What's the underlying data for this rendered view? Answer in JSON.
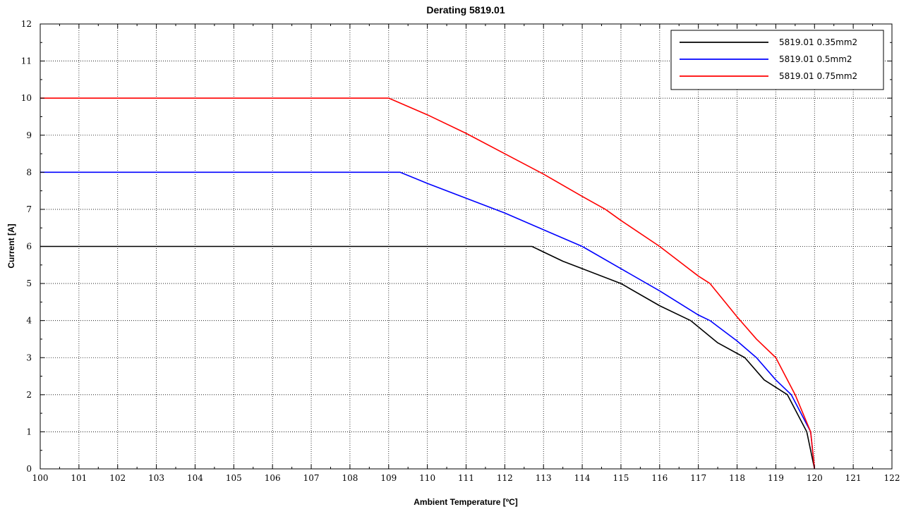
{
  "chart_data": {
    "type": "line",
    "title": "Derating 5819.01",
    "xlabel": "Ambient Temperature [ºC]",
    "ylabel": "Current [A]",
    "xlim": [
      100,
      122
    ],
    "ylim": [
      0,
      12
    ],
    "x_ticks": [
      100,
      101,
      102,
      103,
      104,
      105,
      106,
      107,
      108,
      109,
      110,
      111,
      112,
      113,
      114,
      115,
      116,
      117,
      118,
      119,
      120,
      121,
      122
    ],
    "y_ticks": [
      0,
      1,
      2,
      3,
      4,
      5,
      6,
      7,
      8,
      9,
      10,
      11,
      12
    ],
    "grid": true,
    "legend": "top-right",
    "series": [
      {
        "name": "5819.01 0.35mm2",
        "color": "#000000",
        "x": [
          100,
          112.7,
          113.5,
          114,
          115,
          116,
          116.8,
          117.5,
          118.2,
          118.7,
          119.3,
          119.8,
          120
        ],
        "y": [
          6,
          6,
          5.6,
          5.4,
          5,
          4.4,
          4,
          3.4,
          3,
          2.4,
          2,
          1,
          0
        ]
      },
      {
        "name": "5819.01 0.5mm2",
        "color": "#0000ff",
        "x": [
          100,
          109.3,
          110,
          111,
          112,
          113,
          114,
          115,
          116,
          117,
          117.3,
          118,
          118.5,
          119,
          119.4,
          119.9,
          120
        ],
        "y": [
          8,
          8,
          7.7,
          7.3,
          6.9,
          6.45,
          6,
          5.4,
          4.8,
          4.15,
          4,
          3.45,
          3,
          2.4,
          2,
          1,
          0
        ]
      },
      {
        "name": "5819.01 0.75mm2",
        "color": "#ff0000",
        "x": [
          100,
          109,
          110,
          111,
          112,
          113,
          114,
          114.6,
          115,
          116,
          117,
          117.3,
          118,
          118.5,
          119,
          119.5,
          119.9,
          120
        ],
        "y": [
          10,
          10,
          9.55,
          9.05,
          8.5,
          7.95,
          7.35,
          7,
          6.7,
          6,
          5.2,
          5,
          4.1,
          3.5,
          3,
          2,
          1,
          0
        ]
      }
    ]
  }
}
